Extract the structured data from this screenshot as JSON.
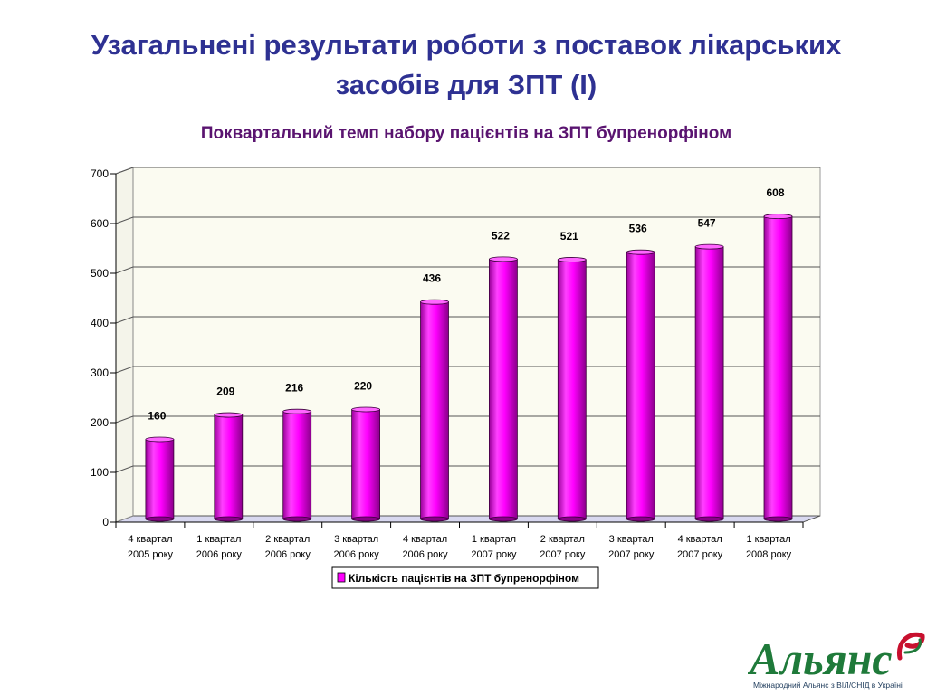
{
  "slide": {
    "title_line1": "Узагальнені результати роботи з поставок лікарських",
    "title_line2": "засобів для ЗПТ (І)"
  },
  "chart_data": {
    "type": "bar",
    "title": "Поквартальний темп набору пацієнтів на ЗПТ бупренорфіном",
    "categories": [
      [
        "4 квартал",
        "2005 року"
      ],
      [
        "1 квартал",
        "2006 року"
      ],
      [
        "2 квартал",
        "2006 року"
      ],
      [
        "3 квартал",
        "2006 року"
      ],
      [
        "4 квартал",
        "2006 року"
      ],
      [
        "1 квартал",
        "2007 року"
      ],
      [
        "2 квартал",
        "2007 року"
      ],
      [
        "3 квартал",
        "2007 року"
      ],
      [
        "4 квартал",
        "2007 року"
      ],
      [
        "1 квартал",
        "2008 року"
      ]
    ],
    "series": [
      {
        "name": "Кількість пацієнтів на ЗПТ бупренорфіном",
        "values": [
          160,
          209,
          216,
          220,
          436,
          522,
          521,
          536,
          547,
          608
        ],
        "color": "#ff00ff"
      }
    ],
    "xlabel": "",
    "ylabel": "",
    "ylim": [
      0,
      700
    ],
    "yticks": [
      0,
      100,
      200,
      300,
      400,
      500,
      600,
      700
    ],
    "grid": true,
    "legend": "bottom-center",
    "data_labels": true
  },
  "logo": {
    "text": "Альянс",
    "subtitle": "Міжнародний Альянс з ВІЛ/СНІД в Україні",
    "color": "#1f7a3a"
  }
}
